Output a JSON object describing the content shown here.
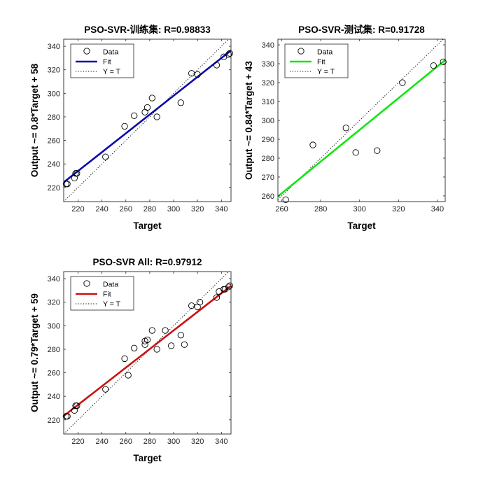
{
  "chart_data": [
    {
      "id": "train",
      "type": "scatter",
      "title": "PSO-SVR-训练集: R=0.98833",
      "xlabel": "Target",
      "ylabel": "Output ~= 0.8*Target + 58",
      "xlim": [
        208,
        348
      ],
      "ylim": [
        208,
        346
      ],
      "xticks": [
        220,
        240,
        260,
        280,
        300,
        320,
        340
      ],
      "yticks": [
        220,
        240,
        260,
        280,
        300,
        320,
        340
      ],
      "fit": {
        "slope": 0.8,
        "intercept": 58,
        "color": "#0b0ba8",
        "label": "Fit"
      },
      "legend": {
        "data": "Data",
        "fit": "Fit",
        "identity": "Y = T"
      },
      "points": [
        [
          210,
          223
        ],
        [
          211,
          223
        ],
        [
          217,
          228
        ],
        [
          218,
          232
        ],
        [
          219,
          232
        ],
        [
          243,
          246
        ],
        [
          259,
          272
        ],
        [
          267,
          281
        ],
        [
          276,
          284
        ],
        [
          278,
          288
        ],
        [
          282,
          296
        ],
        [
          286,
          280
        ],
        [
          306,
          292
        ],
        [
          315,
          317
        ],
        [
          320,
          316
        ],
        [
          336,
          324
        ],
        [
          342,
          331
        ],
        [
          346,
          333
        ],
        [
          347,
          334
        ]
      ]
    },
    {
      "id": "test",
      "type": "scatter",
      "title": "PSO-SVR-测试集: R=0.91728",
      "xlabel": "Target",
      "ylabel": "Output ~= 0.84*Target + 43",
      "xlim": [
        258,
        344
      ],
      "ylim": [
        257,
        343
      ],
      "xticks": [
        260,
        280,
        300,
        320,
        340
      ],
      "yticks": [
        260,
        270,
        280,
        290,
        300,
        310,
        320,
        330,
        340
      ],
      "fit": {
        "slope": 0.84,
        "intercept": 43,
        "color": "#11e611",
        "label": "Fit"
      },
      "legend": {
        "data": "Data",
        "fit": "Fit",
        "identity": "Y = T"
      },
      "points": [
        [
          262,
          258
        ],
        [
          276,
          287
        ],
        [
          293,
          296
        ],
        [
          298,
          283
        ],
        [
          309,
          284
        ],
        [
          322,
          320
        ],
        [
          338,
          329
        ],
        [
          343,
          331
        ]
      ]
    },
    {
      "id": "all",
      "type": "scatter",
      "title": "PSO-SVR All: R=0.97912",
      "xlabel": "Target",
      "ylabel": "Output ~= 0.79*Target + 59",
      "xlim": [
        208,
        348
      ],
      "ylim": [
        208,
        346
      ],
      "xticks": [
        220,
        240,
        260,
        280,
        300,
        320,
        340
      ],
      "yticks": [
        220,
        240,
        260,
        280,
        300,
        320,
        340
      ],
      "fit": {
        "slope": 0.79,
        "intercept": 59,
        "color": "#cc1111",
        "label": "Fit"
      },
      "legend": {
        "data": "Data",
        "fit": "Fit",
        "identity": "Y = T"
      },
      "points": [
        [
          210,
          223
        ],
        [
          211,
          223
        ],
        [
          217,
          228
        ],
        [
          218,
          232
        ],
        [
          219,
          232
        ],
        [
          243,
          246
        ],
        [
          259,
          272
        ],
        [
          262,
          258
        ],
        [
          267,
          281
        ],
        [
          276,
          284
        ],
        [
          276,
          287
        ],
        [
          278,
          288
        ],
        [
          282,
          296
        ],
        [
          286,
          280
        ],
        [
          293,
          296
        ],
        [
          298,
          283
        ],
        [
          306,
          292
        ],
        [
          309,
          284
        ],
        [
          315,
          317
        ],
        [
          320,
          316
        ],
        [
          322,
          320
        ],
        [
          336,
          324
        ],
        [
          338,
          329
        ],
        [
          342,
          331
        ],
        [
          343,
          331
        ],
        [
          346,
          333
        ],
        [
          347,
          334
        ]
      ]
    }
  ]
}
